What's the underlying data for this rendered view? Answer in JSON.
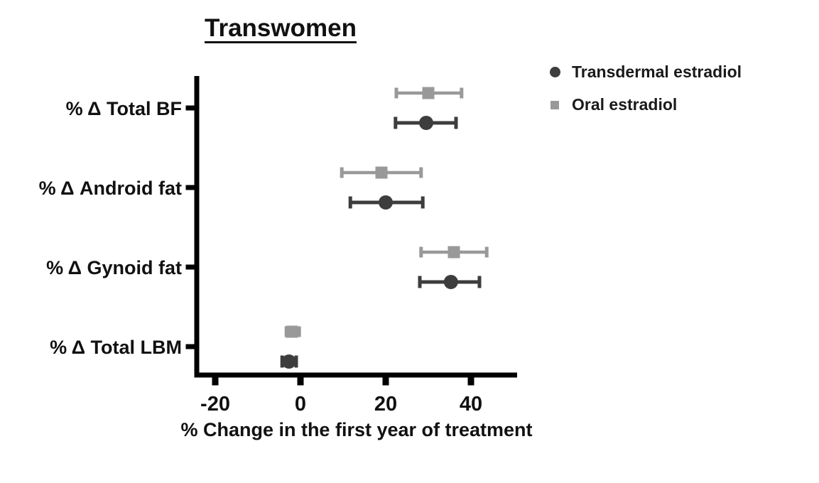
{
  "title": "Transwomen",
  "xlabel": "% Change in the first year of treatment",
  "legend": {
    "position": "top-right",
    "items": [
      {
        "label": "Transdermal estradiol",
        "marker": "circle",
        "color": "#3d3d3d"
      },
      {
        "label": "Oral estradiol",
        "marker": "square",
        "color": "#999999"
      }
    ]
  },
  "chart_data": {
    "type": "scatter",
    "subtype": "forest-plot-horizontal-error-bars",
    "title": "Transwomen",
    "xlabel": "% Change in the first year of treatment",
    "ylabel": "",
    "categories": [
      "% Δ Total BF",
      "% Δ Android fat",
      "% Δ Gynoid fat",
      "% Δ Total LBM"
    ],
    "series": [
      {
        "name": "Oral estradiol",
        "marker": "square",
        "color": "#999999",
        "values": [
          30,
          19,
          36,
          -2
        ],
        "ci_low": [
          22.5,
          9.7,
          28.3,
          -3.3
        ],
        "ci_high": [
          37.8,
          28.3,
          43.7,
          -0.3
        ]
      },
      {
        "name": "Transdermal estradiol",
        "marker": "circle",
        "color": "#3d3d3d",
        "values": [
          29.5,
          20,
          35.3,
          -2.7
        ],
        "ci_low": [
          22.3,
          11.7,
          28,
          -4.3
        ],
        "ci_high": [
          36.5,
          28.7,
          42,
          -1
        ]
      }
    ],
    "xticks": [
      -20,
      0,
      20,
      40
    ],
    "xtick_labels": [
      "-20",
      "0",
      "20",
      "40"
    ],
    "xlim": [
      -24.3,
      50.8
    ],
    "grid": false,
    "legend_position": "top-right",
    "axis_color": "#000000",
    "background": "#ffffff"
  }
}
